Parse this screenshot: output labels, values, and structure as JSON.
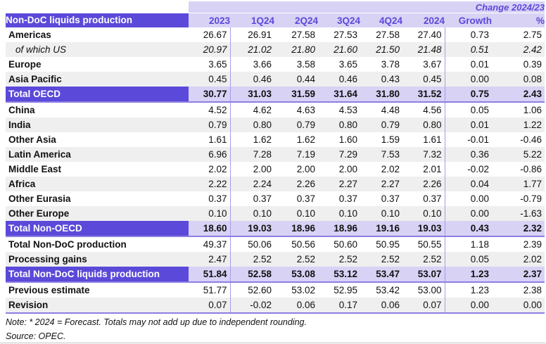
{
  "table": {
    "change_header": "Change 2024/23",
    "row_header": "Non-DoC liquids production",
    "columns": [
      "2023",
      "1Q24",
      "2Q24",
      "3Q24",
      "4Q24",
      "2024",
      "Growth",
      "%"
    ],
    "rows": [
      {
        "label": "Americas",
        "kind": "plain",
        "values": [
          "26.67",
          "26.91",
          "27.58",
          "27.53",
          "27.58",
          "27.40",
          "0.73",
          "2.75"
        ]
      },
      {
        "label": "of which US",
        "kind": "italic",
        "values": [
          "20.97",
          "21.02",
          "21.80",
          "21.60",
          "21.50",
          "21.48",
          "0.51",
          "2.42"
        ]
      },
      {
        "label": "Europe",
        "kind": "plain",
        "values": [
          "3.65",
          "3.66",
          "3.58",
          "3.65",
          "3.78",
          "3.67",
          "0.01",
          "0.39"
        ]
      },
      {
        "label": "Asia Pacific",
        "kind": "plain",
        "values": [
          "0.45",
          "0.46",
          "0.44",
          "0.46",
          "0.43",
          "0.45",
          "0.00",
          "0.08"
        ]
      },
      {
        "label": "Total OECD",
        "kind": "total",
        "values": [
          "30.77",
          "31.03",
          "31.59",
          "31.64",
          "31.80",
          "31.52",
          "0.75",
          "2.43"
        ]
      },
      {
        "label": "China",
        "kind": "plain",
        "values": [
          "4.52",
          "4.62",
          "4.63",
          "4.53",
          "4.48",
          "4.56",
          "0.05",
          "1.06"
        ]
      },
      {
        "label": "India",
        "kind": "plain",
        "values": [
          "0.79",
          "0.80",
          "0.79",
          "0.80",
          "0.79",
          "0.80",
          "0.01",
          "1.22"
        ]
      },
      {
        "label": "Other Asia",
        "kind": "plain",
        "values": [
          "1.61",
          "1.62",
          "1.62",
          "1.60",
          "1.59",
          "1.61",
          "-0.01",
          "-0.46"
        ]
      },
      {
        "label": "Latin America",
        "kind": "plain",
        "values": [
          "6.96",
          "7.28",
          "7.19",
          "7.29",
          "7.53",
          "7.32",
          "0.36",
          "5.22"
        ]
      },
      {
        "label": "Middle East",
        "kind": "plain",
        "values": [
          "2.02",
          "2.00",
          "2.00",
          "2.00",
          "2.02",
          "2.01",
          "-0.02",
          "-0.86"
        ]
      },
      {
        "label": "Africa",
        "kind": "plain",
        "values": [
          "2.22",
          "2.24",
          "2.26",
          "2.27",
          "2.27",
          "2.26",
          "0.04",
          "1.77"
        ]
      },
      {
        "label": "Other Eurasia",
        "kind": "plain",
        "values": [
          "0.37",
          "0.37",
          "0.37",
          "0.37",
          "0.37",
          "0.37",
          "0.00",
          "-0.79"
        ]
      },
      {
        "label": "Other Europe",
        "kind": "plain",
        "values": [
          "0.10",
          "0.10",
          "0.10",
          "0.10",
          "0.10",
          "0.10",
          "0.00",
          "-1.63"
        ]
      },
      {
        "label": "Total Non-OECD",
        "kind": "total",
        "values": [
          "18.60",
          "19.03",
          "18.96",
          "18.96",
          "19.16",
          "19.03",
          "0.43",
          "2.32"
        ]
      },
      {
        "label": "Total Non-DoC production",
        "kind": "plain",
        "values": [
          "49.37",
          "50.06",
          "50.56",
          "50.60",
          "50.95",
          "50.55",
          "1.18",
          "2.39"
        ]
      },
      {
        "label": "Processing gains",
        "kind": "plain",
        "values": [
          "2.47",
          "2.52",
          "2.52",
          "2.52",
          "2.52",
          "2.52",
          "0.05",
          "2.02"
        ]
      },
      {
        "label": "Total Non-DoC liquids production",
        "kind": "total",
        "values": [
          "51.84",
          "52.58",
          "53.08",
          "53.12",
          "53.47",
          "53.07",
          "1.23",
          "2.37"
        ]
      },
      {
        "label": "Previous estimate",
        "kind": "plain",
        "values": [
          "51.77",
          "52.60",
          "53.02",
          "52.95",
          "53.42",
          "53.00",
          "1.23",
          "2.38"
        ]
      },
      {
        "label": "Revision",
        "kind": "last",
        "values": [
          "0.07",
          "-0.02",
          "0.06",
          "0.17",
          "0.06",
          "0.07",
          "0.00",
          "0.00"
        ]
      }
    ]
  },
  "footer": {
    "note": "Note: * 2024 = Forecast. Totals may not add up due to independent rounding.",
    "source": "Source: OPEC."
  },
  "colors": {
    "header_purple": "#5B49D9",
    "light_purple": "#D8D2F5",
    "alt_row_gray": "#EFEFEF",
    "divider_purple": "#8C7FE2",
    "column_rule_purple": "#A89CE8"
  }
}
